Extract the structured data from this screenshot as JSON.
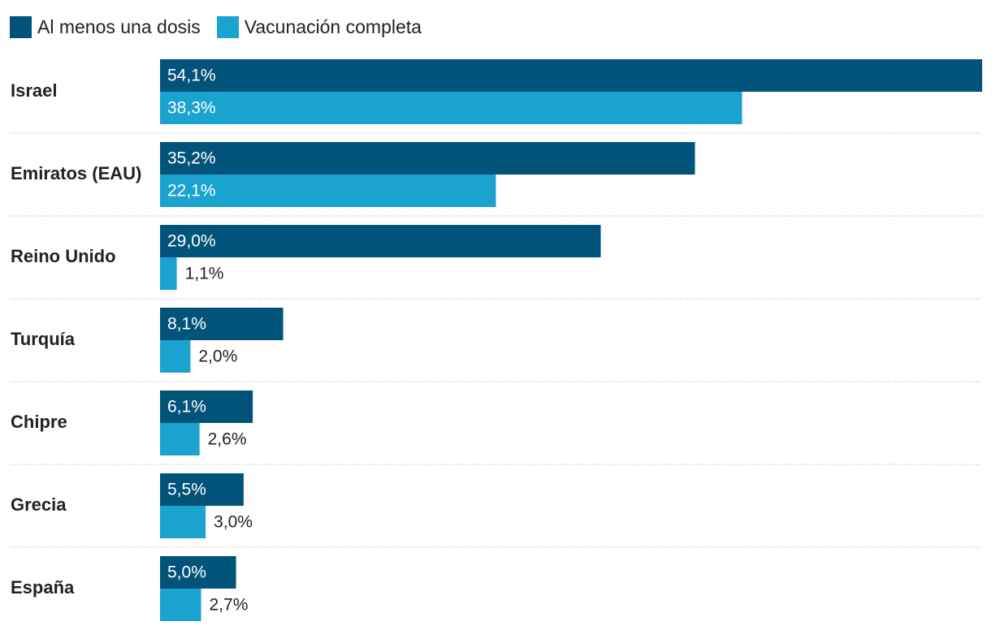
{
  "colors": {
    "dosis": "#02537a",
    "completa": "#1ba3d0",
    "label_inside": "#ffffff",
    "label_outside": "#222222",
    "separator": "#c8c8c8"
  },
  "legend": [
    {
      "name": "Al menos una dosis",
      "color": "#02537a"
    },
    {
      "name": "Vacunación completa",
      "color": "#1ba3d0"
    }
  ],
  "chart_data": {
    "type": "bar",
    "orientation": "horizontal",
    "grouped": true,
    "grid": false,
    "legend_position": "top-left",
    "xlim": [
      0,
      54.1
    ],
    "categories": [
      "Israel",
      "Emiratos (EAU)",
      "Reino Unido",
      "Turquía",
      "Chipre",
      "Grecia",
      "España"
    ],
    "series": [
      {
        "name": "Al menos una dosis",
        "values": [
          54.1,
          35.2,
          29.0,
          8.1,
          6.1,
          5.5,
          5.0
        ],
        "labels": [
          "54,1%",
          "35,2%",
          "29,0%",
          "8,1%",
          "6,1%",
          "5,5%",
          "5,0%"
        ]
      },
      {
        "name": "Vacunación completa",
        "values": [
          38.3,
          22.1,
          1.1,
          2.0,
          2.6,
          3.0,
          2.7
        ],
        "labels": [
          "38,3%",
          "22,1%",
          "1,1%",
          "2,0%",
          "2,6%",
          "3,0%",
          "2,7%"
        ]
      }
    ]
  }
}
